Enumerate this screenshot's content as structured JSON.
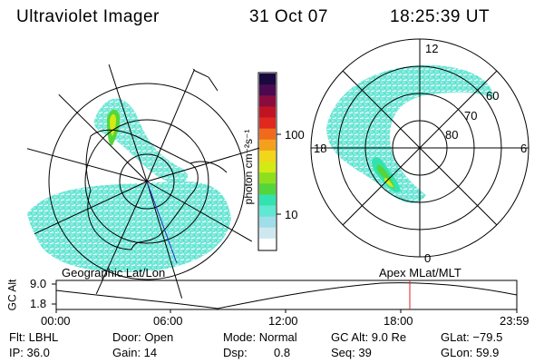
{
  "header": {
    "instrument": "Ultraviolet Imager",
    "date": "31 Oct 07",
    "time": "18:25:39 UT"
  },
  "colorbar": {
    "unit_label": "photon cm⁻²s⁻¹",
    "ticks": [
      "100",
      "10"
    ],
    "colors": [
      "#ffffff",
      "#cfe8ef",
      "#9fdde8",
      "#5fe8d2",
      "#32e3b0",
      "#54d63a",
      "#8ee01e",
      "#d4ea14",
      "#f2d61c",
      "#f5a01c",
      "#f06a1e",
      "#e0281e",
      "#c01424",
      "#8a0c3e",
      "#4a0a50",
      "#1a0840"
    ]
  },
  "geo_panel": {
    "label": "Geographic Lat/Lon"
  },
  "mag_panel": {
    "label": "Apex MLat/MLT",
    "mlt": {
      "top": "12",
      "left": "18",
      "right": "6",
      "bottom": "0"
    },
    "mlat": [
      "60",
      "70",
      "80"
    ]
  },
  "alt_plot": {
    "y_title": "GC Alt",
    "y_ticks": [
      "9.0",
      "1.8"
    ],
    "x_ticks": [
      "00:00",
      "06:00",
      "12:00",
      "18:00",
      "23:59"
    ],
    "current_marker_time": "18:25",
    "marker_color": "#e02020"
  },
  "status": {
    "flt": "Flt: LBHL",
    "ip": "IP: 36.0",
    "door": "Door: Open",
    "gain": "Gain: 14",
    "mode": "Mode: Normal",
    "dsp_label": "Dsp:",
    "dsp_value": "0.8",
    "gcalt": "GC Alt: 9.0 Re",
    "seq": "Seq: 39",
    "glat": "GLat: −79.5",
    "glon": "GLon: 59.9"
  }
}
